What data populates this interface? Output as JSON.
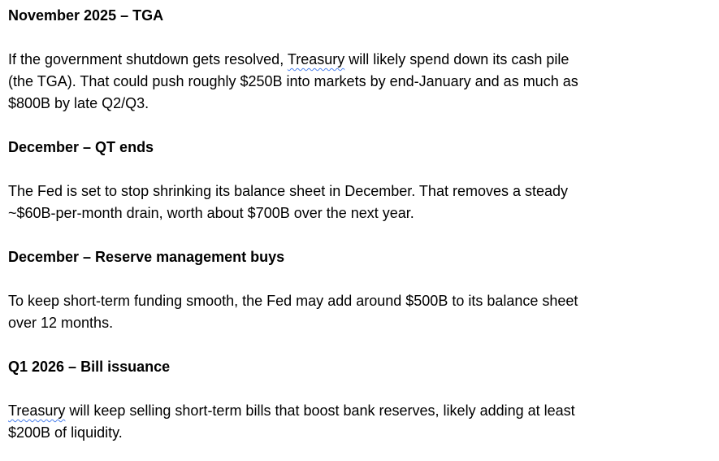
{
  "document": {
    "background_color": "#ffffff",
    "text_color": "#000000",
    "spellcheck_underline_color": "#4d82ec",
    "sections": [
      {
        "heading": "November 2025 – TGA",
        "paragraph": {
          "segments": [
            {
              "text": "If the government shutdown gets resolved, ",
              "spellcheck": false
            },
            {
              "text": "Treasury",
              "spellcheck": true
            },
            {
              "text": " will likely spend down its cash pile\n(the TGA). That could push roughly $250B into markets by end-January and as much as\n$800B by late Q2/Q3.",
              "spellcheck": false
            }
          ]
        }
      },
      {
        "heading": "December – QT ends",
        "paragraph": {
          "segments": [
            {
              "text": "The Fed is set to stop shrinking its balance sheet in December. That removes a steady\n~$60B-per-month drain, worth about $700B over the next year.",
              "spellcheck": false
            }
          ]
        }
      },
      {
        "heading": "December – Reserve management buys",
        "paragraph": {
          "segments": [
            {
              "text": "To keep short-term funding smooth, the Fed may add around $500B to its balance sheet\nover 12 months.",
              "spellcheck": false
            }
          ]
        }
      },
      {
        "heading": "Q1 2026 – Bill issuance",
        "paragraph": {
          "segments": [
            {
              "text": "Treasury",
              "spellcheck": true
            },
            {
              "text": " will keep selling short-term bills that boost bank reserves, likely adding at least\n$200B of liquidity.",
              "spellcheck": false
            }
          ]
        }
      }
    ]
  }
}
